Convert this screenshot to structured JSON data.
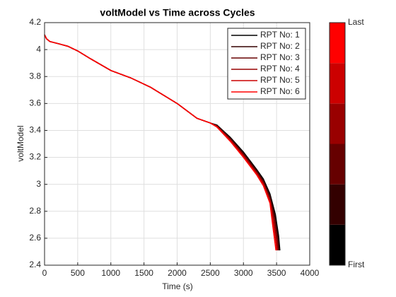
{
  "chart_data": {
    "type": "line",
    "title": "voltModel vs Time  across Cycles",
    "x_label": "Time (s)",
    "y_label": "voltModel",
    "xlim": [
      0,
      4000
    ],
    "xticks": [
      0,
      500,
      1000,
      1500,
      2000,
      2500,
      3000,
      3500,
      4000
    ],
    "ylim": [
      2.4,
      4.2
    ],
    "yticks": [
      2.4,
      2.6,
      2.8,
      3,
      3.2,
      3.4,
      3.6,
      3.8,
      4,
      4.2
    ],
    "grid": true,
    "legend": "top-right",
    "colorbar_labels": [
      "First",
      "Last"
    ],
    "series": [
      {
        "name": "RPT No: 1",
        "color": "#000000",
        "x": [
          0,
          30,
          80,
          200,
          350,
          500,
          700,
          1000,
          1300,
          1600,
          2000,
          2300,
          2500,
          2600,
          2800,
          3000,
          3200,
          3300,
          3400,
          3480,
          3530,
          3550
        ],
        "values": [
          4.11,
          4.08,
          4.06,
          4.045,
          4.025,
          3.99,
          3.93,
          3.845,
          3.79,
          3.72,
          3.6,
          3.49,
          3.455,
          3.44,
          3.35,
          3.24,
          3.11,
          3.04,
          2.93,
          2.78,
          2.62,
          2.51
        ]
      },
      {
        "name": "RPT No: 2",
        "color": "#330000",
        "x": [
          0,
          30,
          80,
          200,
          350,
          500,
          700,
          1000,
          1300,
          1600,
          2000,
          2300,
          2500,
          2600,
          2800,
          3000,
          3200,
          3300,
          3400,
          3475,
          3522,
          3538
        ],
        "values": [
          4.11,
          4.08,
          4.06,
          4.045,
          4.025,
          3.99,
          3.93,
          3.845,
          3.79,
          3.72,
          3.6,
          3.49,
          3.455,
          3.437,
          3.344,
          3.232,
          3.102,
          3.03,
          2.915,
          2.76,
          2.6,
          2.51
        ]
      },
      {
        "name": "RPT No: 3",
        "color": "#660000",
        "x": [
          0,
          30,
          80,
          200,
          350,
          500,
          700,
          1000,
          1300,
          1600,
          2000,
          2300,
          2500,
          2600,
          2800,
          3000,
          3200,
          3300,
          3400,
          3470,
          3515,
          3526
        ],
        "values": [
          4.11,
          4.08,
          4.06,
          4.045,
          4.025,
          3.99,
          3.93,
          3.845,
          3.79,
          3.72,
          3.6,
          3.49,
          3.455,
          3.434,
          3.338,
          3.224,
          3.094,
          3.02,
          2.9,
          2.745,
          2.585,
          2.51
        ]
      },
      {
        "name": "RPT No: 4",
        "color": "#990000",
        "x": [
          0,
          30,
          80,
          200,
          350,
          500,
          700,
          1000,
          1300,
          1600,
          2000,
          2300,
          2500,
          2600,
          2800,
          3000,
          3200,
          3300,
          3400,
          3460,
          3505,
          3514
        ],
        "values": [
          4.11,
          4.08,
          4.06,
          4.045,
          4.025,
          3.99,
          3.93,
          3.845,
          3.79,
          3.72,
          3.6,
          3.49,
          3.455,
          3.431,
          3.332,
          3.216,
          3.086,
          3.01,
          2.885,
          2.73,
          2.57,
          2.51
        ]
      },
      {
        "name": "RPT No: 5",
        "color": "#cc0000",
        "x": [
          0,
          30,
          80,
          200,
          350,
          500,
          700,
          1000,
          1300,
          1600,
          2000,
          2300,
          2500,
          2600,
          2800,
          3000,
          3200,
          3300,
          3400,
          3450,
          3495,
          3502
        ],
        "values": [
          4.11,
          4.08,
          4.06,
          4.045,
          4.025,
          3.99,
          3.93,
          3.845,
          3.79,
          3.72,
          3.6,
          3.49,
          3.455,
          3.428,
          3.326,
          3.208,
          3.078,
          3.0,
          2.87,
          2.715,
          2.555,
          2.51
        ]
      },
      {
        "name": "RPT No: 6",
        "color": "#ff0000",
        "x": [
          0,
          30,
          80,
          200,
          350,
          500,
          700,
          1000,
          1300,
          1600,
          2000,
          2300,
          2500,
          2600,
          2800,
          3000,
          3200,
          3300,
          3400,
          3440,
          3480,
          3490
        ],
        "values": [
          4.11,
          4.08,
          4.06,
          4.045,
          4.025,
          3.99,
          3.93,
          3.845,
          3.79,
          3.72,
          3.6,
          3.49,
          3.455,
          3.425,
          3.32,
          3.2,
          3.07,
          2.99,
          2.86,
          2.7,
          2.55,
          2.51
        ]
      }
    ]
  }
}
